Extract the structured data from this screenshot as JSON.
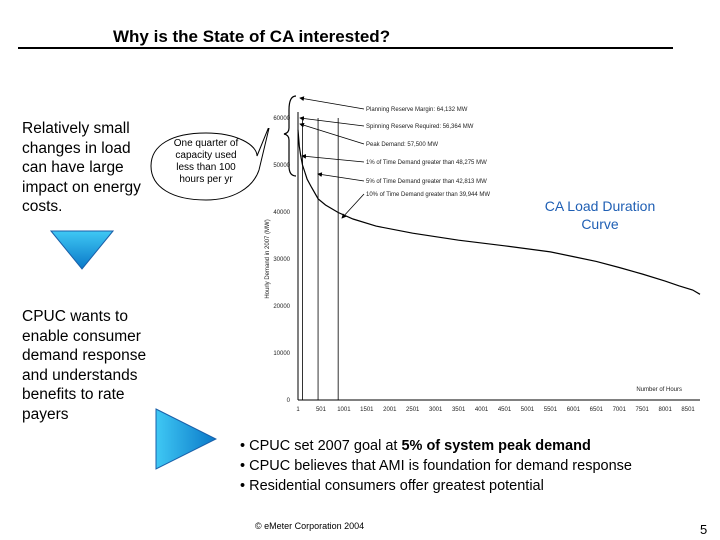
{
  "title": "Why is the State of CA interested?",
  "left_text": {
    "top": "Relatively small changes in load can have large impact on energy costs.",
    "bottom": "CPUC wants to enable consumer demand response and understands benefits to rate payers"
  },
  "callout": "One quarter of capacity used less than 100 hours per yr",
  "chart_label": "CA Load Duration Curve",
  "bullets": [
    {
      "prefix": "• CPUC set 2007 goal at ",
      "bold": "5% of system peak demand"
    },
    {
      "prefix": "• CPUC believes that AMI is foundation for demand response",
      "bold": ""
    },
    {
      "prefix": "• Residential consumers offer greatest potential",
      "bold": ""
    }
  ],
  "footer": "© eMeter Corporation 2004",
  "page_number": "5",
  "colors": {
    "accent_blue": "#1f5fb4",
    "arrow_blue_top": "#3fc8f4",
    "arrow_blue_bottom": "#0a78c8"
  },
  "chart_data": {
    "type": "line",
    "title": "",
    "xlabel": "Number of Hours",
    "ylabel": "Hourly Demand in 2007 (MW)",
    "xlim": [
      1,
      8760
    ],
    "ylim": [
      0,
      60000
    ],
    "x_ticks": [
      1,
      501,
      1001,
      1501,
      2001,
      2501,
      3001,
      3501,
      4001,
      4501,
      5001,
      5501,
      6001,
      6501,
      7001,
      7501,
      8001,
      8501
    ],
    "y_ticks": [
      0,
      10000,
      20000,
      30000,
      40000,
      50000,
      60000
    ],
    "series": [
      {
        "x": [
          1,
          30,
          60,
          100,
          150,
          200,
          300,
          438,
          600,
          876,
          1200,
          1700,
          2500,
          3500,
          4500,
          5500,
          6000,
          6500,
          7000,
          7500,
          8000,
          8300,
          8600,
          8760
        ],
        "y": [
          57500,
          54000,
          52000,
          50000,
          48500,
          47000,
          45200,
          42800,
          41500,
          39900,
          38500,
          37000,
          35500,
          34000,
          32800,
          31500,
          30500,
          29500,
          28200,
          26800,
          25300,
          24300,
          23400,
          22500
        ]
      }
    ],
    "vertical_lines_x": [
      100,
      438,
      876
    ],
    "annotations": [
      "Planning Reserve Margin: 64,132 MW",
      "Spinning Reserve Required: 56,364 MW",
      "Peak Demand: 57,500 MW",
      "1% of Time Demand greater than 48,275 MW",
      "5% of Time Demand greater than 42,813 MW",
      "10% of Time Demand greater than 39,944 MW"
    ]
  }
}
